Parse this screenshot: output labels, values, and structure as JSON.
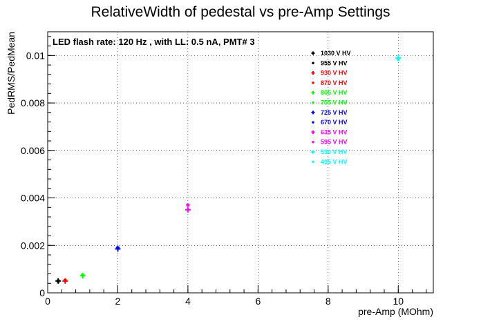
{
  "chart_data": {
    "type": "scatter",
    "title": "RelativeWidth of pedestal vs pre-Amp Settings",
    "xlabel": "pre-Amp (MOhm)",
    "ylabel": "PedRMS/PedMean",
    "xlim": [
      0,
      11
    ],
    "ylim": [
      0,
      0.011
    ],
    "x_ticks": [
      "0",
      "2",
      "4",
      "6",
      "8",
      "10"
    ],
    "y_ticks": [
      "0",
      "0.002",
      "0.004",
      "0.006",
      "0.008",
      "0.01"
    ],
    "grid": true,
    "annotation": "LED flash rate: 120 Hz , with LL: 0.5 nA, PMT# 3",
    "legend_position": "top-right",
    "series": [
      {
        "name": "1030 V HV",
        "color": "#000000",
        "marker": "cross",
        "x": [
          0.3
        ],
        "y": [
          0.0005
        ]
      },
      {
        "name": "955 V HV",
        "color": "#000000",
        "marker": "star",
        "x": [
          0.3
        ],
        "y": [
          0.0005
        ]
      },
      {
        "name": "930 V HV",
        "color": "#ff0000",
        "marker": "cross",
        "x": [
          0.5
        ],
        "y": [
          0.0005
        ]
      },
      {
        "name": "870 V HV",
        "color": "#ff0000",
        "marker": "star",
        "x": [
          0.5
        ],
        "y": [
          0.00052
        ]
      },
      {
        "name": "805 V HV",
        "color": "#00ff00",
        "marker": "cross",
        "x": [
          1.0
        ],
        "y": [
          0.00072
        ]
      },
      {
        "name": "755 V HV",
        "color": "#00ff00",
        "marker": "star",
        "x": [
          1.0
        ],
        "y": [
          0.00075
        ]
      },
      {
        "name": "725 V HV",
        "color": "#0000ff",
        "marker": "cross",
        "x": [
          2.0
        ],
        "y": [
          0.00185
        ]
      },
      {
        "name": "670 V HV",
        "color": "#0000ff",
        "marker": "star",
        "x": [
          2.0
        ],
        "y": [
          0.0019
        ]
      },
      {
        "name": "635 V HV",
        "color": "#ff00ff",
        "marker": "cross",
        "x": [
          4.0
        ],
        "y": [
          0.0035
        ]
      },
      {
        "name": "595 V HV",
        "color": "#ff00ff",
        "marker": "star",
        "x": [
          4.0
        ],
        "y": [
          0.0037
        ]
      },
      {
        "name": "530 V HV",
        "color": "#00ffff",
        "marker": "cross",
        "x": [
          10.0
        ],
        "y": [
          0.0099
        ]
      },
      {
        "name": "495 V HV",
        "color": "#00ffff",
        "marker": "star",
        "x": [
          10.0
        ],
        "y": [
          0.00985
        ]
      }
    ]
  }
}
